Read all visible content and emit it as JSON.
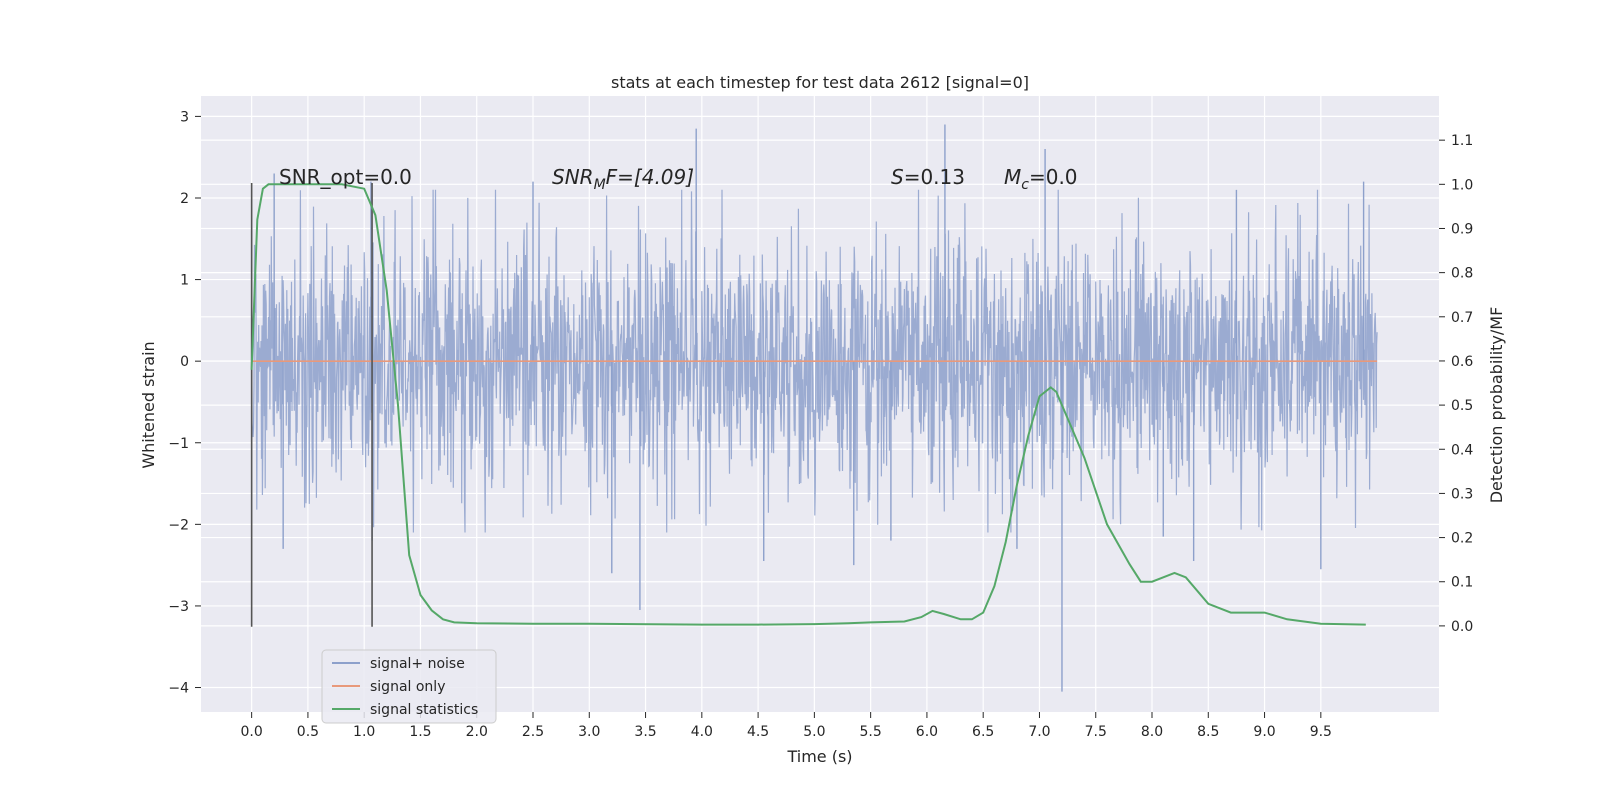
{
  "chart_data": {
    "type": "line",
    "title": "stats at each timestep for test data 2612 [signal=0]",
    "xlabel": "Time (s)",
    "ylabel": "Whitened strain",
    "ylabel_right": "Detection probability/MF",
    "xlim": [
      -0.45,
      10.55
    ],
    "ylim": [
      -4.3,
      3.25
    ],
    "ylim_right": [
      -0.195,
      1.2
    ],
    "x_ticks": [
      "0.0",
      "0.5",
      "1.0",
      "1.5",
      "2.0",
      "2.5",
      "3.0",
      "3.5",
      "4.0",
      "4.5",
      "5.0",
      "5.5",
      "6.0",
      "6.5",
      "7.0",
      "7.5",
      "8.0",
      "8.5",
      "9.0",
      "9.5"
    ],
    "x_tick_values": [
      0.0,
      0.5,
      1.0,
      1.5,
      2.0,
      2.5,
      3.0,
      3.5,
      4.0,
      4.5,
      5.0,
      5.5,
      6.0,
      6.5,
      7.0,
      7.5,
      8.0,
      8.5,
      9.0,
      9.5
    ],
    "y_ticks": [
      "−4",
      "−3",
      "−2",
      "−1",
      "0",
      "1",
      "2",
      "3"
    ],
    "y_tick_values": [
      -4,
      -3,
      -2,
      -1,
      0,
      1,
      2,
      3
    ],
    "y_ticks_right": [
      "0.0",
      "0.1",
      "0.2",
      "0.3",
      "0.4",
      "0.5",
      "0.6",
      "0.7",
      "0.8",
      "0.9",
      "1.0",
      "1.1"
    ],
    "y_tick_values_right": [
      0.0,
      0.1,
      0.2,
      0.3,
      0.4,
      0.5,
      0.6,
      0.7,
      0.8,
      0.9,
      1.0,
      1.1
    ],
    "grid": true,
    "legend_position": "lower-left",
    "annotations": {
      "snr_opt": "SNR_opt=0.0",
      "snr_mf_base": "SNR",
      "snr_mf_sub": "M",
      "snr_mf_rest": "F=[4.09]",
      "s_label": "S",
      "s_value": "=0.13",
      "mc_label": "M",
      "mc_sub": "c",
      "mc_value": "=0.0"
    },
    "vertical_markers": [
      0.0,
      1.07
    ],
    "series": [
      {
        "name": "signal+ noise",
        "color": "#8da0cb",
        "axis": "left",
        "envelope": {
          "x_range": [
            0.0,
            10.0
          ],
          "std": 0.78,
          "spikes": [
            [
              0.0,
              1.6
            ],
            [
              0.2,
              2.3
            ],
            [
              0.28,
              -2.3
            ],
            [
              1.06,
              2.2
            ],
            [
              1.07,
              -2.2
            ],
            [
              2.5,
              2.2
            ],
            [
              3.2,
              -2.6
            ],
            [
              3.45,
              -3.05
            ],
            [
              3.95,
              2.85
            ],
            [
              4.55,
              -2.45
            ],
            [
              5.35,
              -2.5
            ],
            [
              5.68,
              -2.2
            ],
            [
              6.16,
              2.9
            ],
            [
              6.8,
              -2.3
            ],
            [
              7.05,
              2.6
            ],
            [
              7.2,
              -4.05
            ],
            [
              8.1,
              -2.15
            ],
            [
              8.37,
              -2.45
            ],
            [
              8.75,
              2.1
            ],
            [
              9.5,
              -2.55
            ],
            [
              9.88,
              2.2
            ]
          ]
        }
      },
      {
        "name": "signal only",
        "color": "#e8997b",
        "axis": "left",
        "x": [
          0.0,
          10.0
        ],
        "y": [
          0.0,
          0.0
        ]
      },
      {
        "name": "signal statistics",
        "color": "#55a868",
        "axis": "right",
        "x": [
          0.0,
          0.05,
          0.1,
          0.15,
          0.2,
          0.3,
          0.5,
          0.8,
          1.0,
          1.1,
          1.2,
          1.3,
          1.4,
          1.5,
          1.6,
          1.7,
          1.8,
          2.0,
          2.5,
          3.0,
          4.0,
          4.5,
          5.0,
          5.3,
          5.5,
          5.8,
          5.95,
          6.05,
          6.15,
          6.3,
          6.4,
          6.5,
          6.6,
          6.7,
          6.8,
          6.9,
          7.0,
          7.05,
          7.1,
          7.15,
          7.25,
          7.4,
          7.6,
          7.8,
          7.9,
          8.0,
          8.1,
          8.2,
          8.3,
          8.5,
          8.7,
          8.9,
          9.0,
          9.2,
          9.5,
          9.9
        ],
        "y": [
          0.58,
          0.92,
          0.99,
          1.0,
          1.0,
          1.0,
          1.0,
          1.0,
          0.99,
          0.93,
          0.76,
          0.5,
          0.16,
          0.07,
          0.035,
          0.015,
          0.008,
          0.006,
          0.005,
          0.005,
          0.003,
          0.003,
          0.004,
          0.006,
          0.008,
          0.01,
          0.02,
          0.034,
          0.027,
          0.015,
          0.015,
          0.03,
          0.09,
          0.19,
          0.32,
          0.43,
          0.52,
          0.53,
          0.54,
          0.53,
          0.47,
          0.38,
          0.23,
          0.14,
          0.1,
          0.1,
          0.11,
          0.12,
          0.11,
          0.05,
          0.03,
          0.03,
          0.03,
          0.015,
          0.005,
          0.003
        ]
      }
    ]
  }
}
